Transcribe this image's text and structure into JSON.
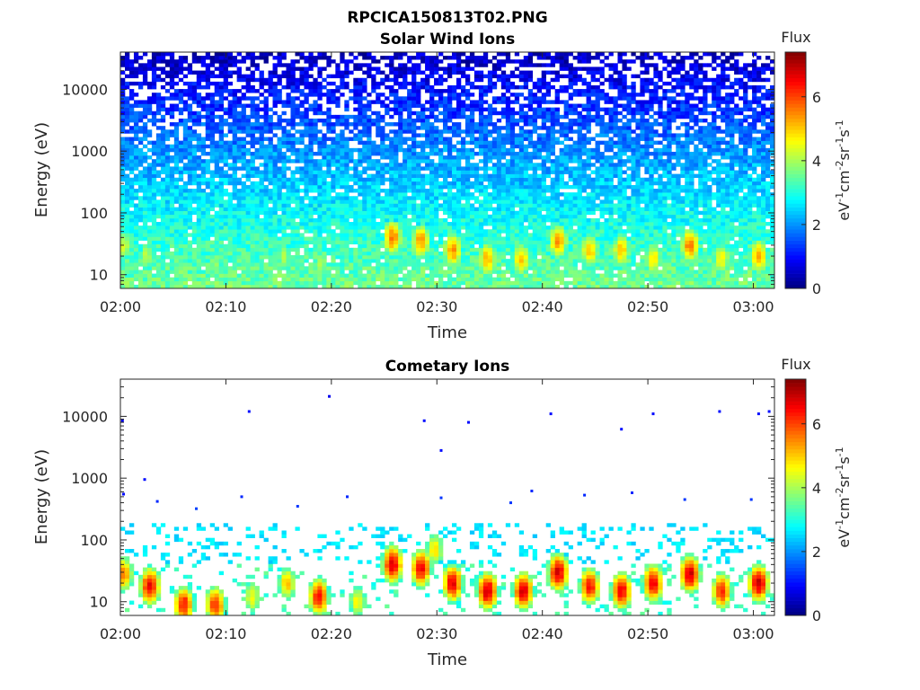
{
  "figure": {
    "title": "RPCICA150813T02.PNG"
  },
  "chart_data": [
    {
      "type": "heatmap",
      "title": "Solar Wind Ions",
      "xlabel": "Time",
      "ylabel": "Energy (eV)",
      "x_range": [
        "02:00",
        "03:02"
      ],
      "x_ticks": [
        "02:00",
        "02:10",
        "02:20",
        "02:30",
        "02:40",
        "02:50",
        "03:00"
      ],
      "y_scale": "log",
      "y_range": [
        6,
        40000
      ],
      "y_ticks": [
        10,
        100,
        1000,
        10000
      ],
      "y_tick_labels": [
        "10",
        "100",
        "1000",
        "10000"
      ],
      "colorbar": {
        "title": "Flux",
        "label": "eV-1cm-2sr-1s-1",
        "colormap": "jet",
        "range": [
          0,
          7.4
        ],
        "ticks": [
          0,
          2,
          4,
          6
        ],
        "tick_labels": [
          "0",
          "2",
          "4",
          "6"
        ]
      },
      "background_sparsity_high_energy": 0.35,
      "background": [
        {
          "energy": 30000,
          "flux": 0.5
        },
        {
          "energy": 10000,
          "flux": 1.0
        },
        {
          "energy": 3000,
          "flux": 1.5
        },
        {
          "energy": 1000,
          "flux": 2.0
        },
        {
          "energy": 300,
          "flux": 2.4
        },
        {
          "energy": 100,
          "flux": 2.8
        },
        {
          "energy": 30,
          "flux": 3.2
        },
        {
          "energy": 6,
          "flux": 3.6
        }
      ],
      "features": [
        {
          "time_min": 0.3,
          "energy": 30,
          "flux": 4.3
        },
        {
          "time_min": 2.5,
          "energy": 20,
          "flux": 4.1
        },
        {
          "time_min": 6.0,
          "energy": 12,
          "flux": 3.9
        },
        {
          "time_min": 9.0,
          "energy": 15,
          "flux": 3.9
        },
        {
          "time_min": 15.5,
          "energy": 20,
          "flux": 4.0
        },
        {
          "time_min": 19.0,
          "energy": 15,
          "flux": 4.0
        },
        {
          "time_min": 25.8,
          "energy": 40,
          "flux": 5.6
        },
        {
          "time_min": 28.5,
          "energy": 35,
          "flux": 5.4
        },
        {
          "time_min": 31.5,
          "energy": 25,
          "flux": 5.4
        },
        {
          "time_min": 34.8,
          "energy": 18,
          "flux": 5.2
        },
        {
          "time_min": 38.0,
          "energy": 18,
          "flux": 5.0
        },
        {
          "time_min": 41.5,
          "energy": 35,
          "flux": 5.4
        },
        {
          "time_min": 44.5,
          "energy": 25,
          "flux": 5.0
        },
        {
          "time_min": 47.5,
          "energy": 25,
          "flux": 5.0
        },
        {
          "time_min": 50.5,
          "energy": 18,
          "flux": 4.8
        },
        {
          "time_min": 54.0,
          "energy": 30,
          "flux": 5.6
        },
        {
          "time_min": 57.0,
          "energy": 18,
          "flux": 4.6
        },
        {
          "time_min": 60.5,
          "energy": 20,
          "flux": 5.3
        }
      ]
    },
    {
      "type": "heatmap",
      "title": "Cometary Ions",
      "xlabel": "Time",
      "ylabel": "Energy (eV)",
      "x_range": [
        "02:00",
        "03:02"
      ],
      "x_ticks": [
        "02:00",
        "02:10",
        "02:20",
        "02:30",
        "02:40",
        "02:50",
        "03:00"
      ],
      "y_scale": "log",
      "y_range": [
        6,
        40000
      ],
      "y_ticks": [
        10,
        100,
        1000,
        10000
      ],
      "y_tick_labels": [
        "10",
        "100",
        "1000",
        "10000"
      ],
      "colorbar": {
        "title": "Flux",
        "label": "eV-1cm-2sr-1s-1",
        "colormap": "jet",
        "range": [
          0,
          7.4
        ],
        "ticks": [
          0,
          2,
          4,
          6
        ],
        "tick_labels": [
          "0",
          "2",
          "4",
          "6"
        ]
      },
      "sparse_band": {
        "energy_min": 40,
        "energy_max": 200,
        "flux": 2.6
      },
      "scattered_points": [
        {
          "time_min": 0.2,
          "energy": 8500,
          "flux": 0.8
        },
        {
          "time_min": 0.3,
          "energy": 550,
          "flux": 1.0
        },
        {
          "time_min": 2.3,
          "energy": 950,
          "flux": 1.0
        },
        {
          "time_min": 3.5,
          "energy": 420,
          "flux": 1.2
        },
        {
          "time_min": 7.2,
          "energy": 320,
          "flux": 1.4
        },
        {
          "time_min": 12.2,
          "energy": 12000,
          "flux": 1.0
        },
        {
          "time_min": 11.5,
          "energy": 500,
          "flux": 1.2
        },
        {
          "time_min": 16.8,
          "energy": 350,
          "flux": 1.3
        },
        {
          "time_min": 19.8,
          "energy": 21000,
          "flux": 0.8
        },
        {
          "time_min": 21.5,
          "energy": 500,
          "flux": 1.2
        },
        {
          "time_min": 28.8,
          "energy": 8500,
          "flux": 1.0
        },
        {
          "time_min": 30.4,
          "energy": 2800,
          "flux": 1.0
        },
        {
          "time_min": 33.0,
          "energy": 8000,
          "flux": 1.0
        },
        {
          "time_min": 30.4,
          "energy": 480,
          "flux": 1.3
        },
        {
          "time_min": 37.0,
          "energy": 400,
          "flux": 1.3
        },
        {
          "time_min": 39.0,
          "energy": 620,
          "flux": 1.2
        },
        {
          "time_min": 40.8,
          "energy": 11000,
          "flux": 1.0
        },
        {
          "time_min": 44.0,
          "energy": 530,
          "flux": 1.2
        },
        {
          "time_min": 47.5,
          "energy": 6200,
          "flux": 1.0
        },
        {
          "time_min": 48.5,
          "energy": 580,
          "flux": 1.2
        },
        {
          "time_min": 50.5,
          "energy": 11000,
          "flux": 1.0
        },
        {
          "time_min": 53.5,
          "energy": 450,
          "flux": 1.3
        },
        {
          "time_min": 56.8,
          "energy": 12000,
          "flux": 1.0
        },
        {
          "time_min": 59.8,
          "energy": 450,
          "flux": 1.3
        },
        {
          "time_min": 60.5,
          "energy": 11000,
          "flux": 1.0
        },
        {
          "time_min": 61.5,
          "energy": 12000,
          "flux": 1.0
        }
      ],
      "features": [
        {
          "time_min": 0.3,
          "energy": 28,
          "flux": 5.5
        },
        {
          "time_min": 2.8,
          "energy": 18,
          "flux": 6.6
        },
        {
          "time_min": 6.0,
          "energy": 9,
          "flux": 6.4
        },
        {
          "time_min": 9.0,
          "energy": 9,
          "flux": 6.2
        },
        {
          "time_min": 12.5,
          "energy": 12,
          "flux": 4.6
        },
        {
          "time_min": 15.8,
          "energy": 20,
          "flux": 5.0
        },
        {
          "time_min": 18.8,
          "energy": 12,
          "flux": 6.4
        },
        {
          "time_min": 22.5,
          "energy": 10,
          "flux": 4.6
        },
        {
          "time_min": 25.8,
          "energy": 40,
          "flux": 6.8
        },
        {
          "time_min": 28.5,
          "energy": 35,
          "flux": 6.6
        },
        {
          "time_min": 29.8,
          "energy": 70,
          "flux": 4.8
        },
        {
          "time_min": 31.5,
          "energy": 20,
          "flux": 6.6
        },
        {
          "time_min": 34.8,
          "energy": 15,
          "flux": 6.9
        },
        {
          "time_min": 38.2,
          "energy": 15,
          "flux": 6.8
        },
        {
          "time_min": 41.5,
          "energy": 30,
          "flux": 6.8
        },
        {
          "time_min": 44.5,
          "energy": 18,
          "flux": 6.4
        },
        {
          "time_min": 47.5,
          "energy": 15,
          "flux": 6.6
        },
        {
          "time_min": 50.5,
          "energy": 20,
          "flux": 6.6
        },
        {
          "time_min": 54.0,
          "energy": 28,
          "flux": 6.8
        },
        {
          "time_min": 57.0,
          "energy": 15,
          "flux": 6.2
        },
        {
          "time_min": 60.5,
          "energy": 20,
          "flux": 6.9
        }
      ]
    }
  ]
}
